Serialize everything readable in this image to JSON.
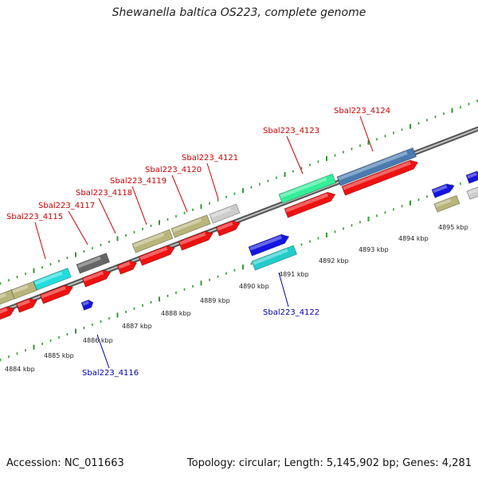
{
  "title": "Shewanella baltica OS223, complete genome",
  "footer": {
    "accession": "Accession: NC_011663",
    "summary": "Topology: circular; Length: 5,145,902 bp; Genes: 4,281"
  },
  "colors": {
    "backbone": "#8a8a8a",
    "tick_forward": "#2e9a2e",
    "tick_reverse": "#2e9a2e",
    "label_forward": "#cc0000",
    "label_reverse": "#0000aa",
    "cds": "#ee1111",
    "rna_tan": "#b8b47a",
    "rna_cyan": "#22dddd",
    "rna_teal": "#22cccc",
    "rna_green": "#33ee99",
    "rna_steelblue": "#4a7ab0",
    "gray_dark": "#666666",
    "gray_light": "#cccccc",
    "blue": "#1515e0"
  },
  "scale_labels": [
    "4884 kbp",
    "4885 kbp",
    "4886 kbp",
    "4887 kbp",
    "4888 kbp",
    "4889 kbp",
    "4890 kbp",
    "4891 kbp",
    "4892 kbp",
    "4893 kbp",
    "4894 kbp",
    "4895 kbp"
  ],
  "gene_labels": {
    "forward": [
      "Sbal223_4115",
      "Sbal223_4117",
      "Sbal223_4118",
      "Sbal223_4119",
      "Sbal223_4120",
      "Sbal223_4121",
      "Sbal223_4123",
      "Sbal223_4124"
    ],
    "reverse": [
      "Sbal223_4116",
      "Sbal223_4122"
    ]
  }
}
